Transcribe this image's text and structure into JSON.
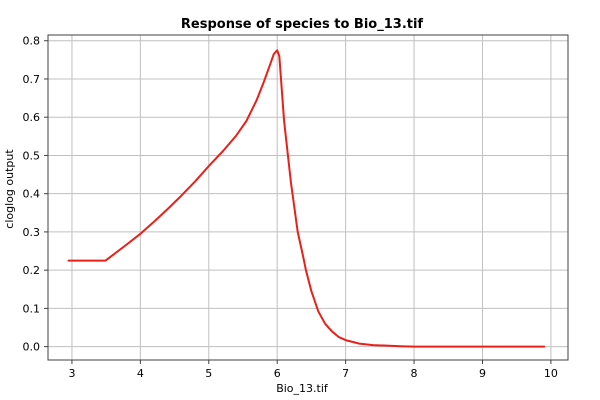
{
  "chart_data": {
    "type": "line",
    "title": "Response of species to Bio_13.tif",
    "xlabel": "Bio_13.tif",
    "ylabel": "cloglog output",
    "xlim": [
      2.65,
      10.25
    ],
    "ylim": [
      -0.035,
      0.815
    ],
    "xticks": [
      "3",
      "4",
      "5",
      "6",
      "7",
      "8",
      "9",
      "10"
    ],
    "yticks": [
      "0.0",
      "0.1",
      "0.2",
      "0.3",
      "0.4",
      "0.5",
      "0.6",
      "0.7",
      "0.8"
    ],
    "grid": true,
    "series": [
      {
        "color": "#e8201a",
        "x": [
          2.95,
          3.2,
          3.49,
          3.6,
          3.8,
          4.0,
          4.2,
          4.4,
          4.6,
          4.8,
          5.0,
          5.2,
          5.4,
          5.55,
          5.7,
          5.8,
          5.9,
          5.95,
          6.0,
          6.03,
          6.1,
          6.2,
          6.3,
          6.38,
          6.42,
          6.5,
          6.6,
          6.7,
          6.8,
          6.9,
          7.0,
          7.2,
          7.4,
          7.8,
          8.0,
          9.0,
          9.9
        ],
        "values": [
          0.225,
          0.225,
          0.225,
          0.24,
          0.267,
          0.295,
          0.327,
          0.36,
          0.395,
          0.432,
          0.472,
          0.51,
          0.552,
          0.59,
          0.645,
          0.69,
          0.74,
          0.765,
          0.775,
          0.76,
          0.59,
          0.43,
          0.3,
          0.235,
          0.2,
          0.145,
          0.092,
          0.06,
          0.04,
          0.025,
          0.017,
          0.008,
          0.004,
          0.001,
          0.0,
          0.0,
          0.0
        ]
      }
    ]
  }
}
